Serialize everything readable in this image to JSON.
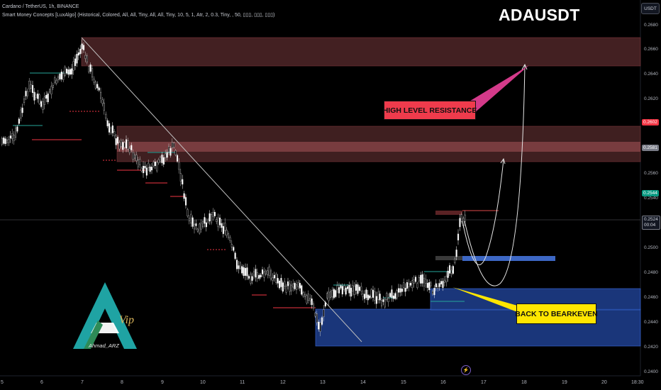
{
  "header": {
    "symbol_line": "Cardano / TetherUS, 1h, BINANCE",
    "indicator_line": "Smart Money Concepts [LuxAlgo] (Historical, Colored, All, All, Tiny, All, All, Tiny, 10, 5, 1, Atr, 2, 0.3, Tiny, , 50, ▯▯▯, ▯▯▯, ▯▯▯)"
  },
  "title": "ADAUSDT",
  "currency_button": "USDT",
  "price_axis": {
    "labels": [
      "0.2680",
      "0.2660",
      "0.2640",
      "0.2620",
      "0.2560",
      "0.2540",
      "0.2500",
      "0.2480",
      "0.2460",
      "0.2440",
      "0.2420",
      "0.2400"
    ]
  },
  "price_tags": {
    "red": {
      "label": "0.2602",
      "color": "#f23645"
    },
    "gray": {
      "label": "0.2581",
      "color": "#787b86"
    },
    "teal": {
      "label": "0.2544",
      "color": "#089981"
    },
    "current": {
      "label": "0.2524",
      "sub": "00:04"
    }
  },
  "time_axis": {
    "labels": [
      "5",
      "6",
      "7",
      "8",
      "9",
      "10",
      "11",
      "12",
      "13",
      "14",
      "15",
      "16",
      "17",
      "18",
      "19",
      "20",
      "18:30"
    ]
  },
  "annotations": {
    "high_resistance": "HIGH LEVEL RESISTANCE",
    "back_to_breakeven": "BACK TO BEARKEVEN"
  },
  "logo": {
    "text": "Ahmad_ARZ",
    "script": "Vip"
  },
  "icons": {
    "alert": "lightning-icon"
  },
  "colors": {
    "background": "#000000",
    "bull": "#ffffff",
    "bear": "#c8c8c8",
    "resistance_zone": "#5a2a2c",
    "demand_zone": "#1e3f8f",
    "callout_red": "#ef3b4c",
    "callout_yellow": "#ffe600"
  }
}
